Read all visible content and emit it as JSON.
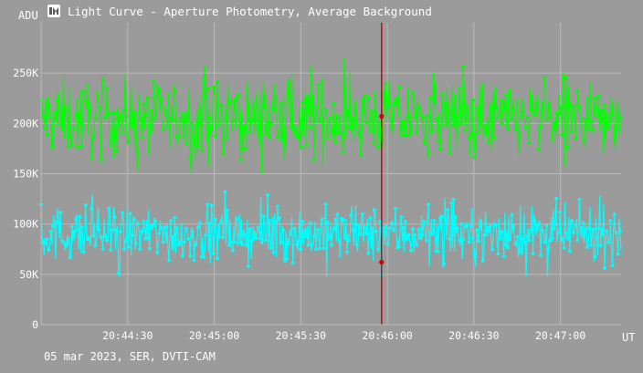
{
  "window": {
    "title": "Light Curve - Aperture Photometry, Average Background",
    "footer": "05 mar 2023, SER, DVTI-CAM",
    "logo": "app-logo-icon"
  },
  "colors": {
    "background": "#9b9b9b",
    "grid": "#b9b9b9",
    "axis_text": "#ffffff",
    "cursor": "#d40000",
    "series_target": "#00ff00",
    "series_comparison": "#00ffff"
  },
  "chart_data": {
    "type": "line",
    "ylabel": "ADU",
    "xlabel": "UT",
    "ylim": [
      0,
      300000
    ],
    "yticks": [
      0,
      50000,
      100000,
      150000,
      200000,
      250000
    ],
    "ytick_labels": [
      "0",
      "50K",
      "100K",
      "150K",
      "200K",
      "250K"
    ],
    "xrange": [
      "20:44:00",
      "20:47:21"
    ],
    "xticks": [
      "20:44:30",
      "20:45:00",
      "20:45:30",
      "20:46:00",
      "20:46:30",
      "20:47:00"
    ],
    "grid": true,
    "cursor_time": "20:45:58",
    "cursor_values": [
      207000,
      62000
    ],
    "series": [
      {
        "color": "#00ff00",
        "mean": 205000,
        "noise": 18000,
        "min": 140000,
        "max": 265000
      },
      {
        "color": "#00ffff",
        "mean": 90000,
        "noise": 13000,
        "min": 48000,
        "max": 138000
      }
    ]
  }
}
